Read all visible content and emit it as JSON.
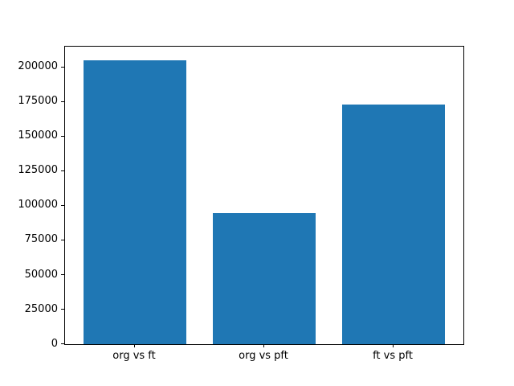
{
  "chart_data": {
    "type": "bar",
    "categories": [
      "org vs ft",
      "org vs pft",
      "ft vs pft"
    ],
    "values": [
      205000,
      95000,
      173000
    ],
    "title": "",
    "xlabel": "",
    "ylabel": "",
    "ylim": [
      0,
      215000
    ],
    "yticks": [
      0,
      25000,
      50000,
      75000,
      100000,
      125000,
      150000,
      175000,
      200000
    ],
    "bar_color": "#1f77b4",
    "bar_width_fraction": 0.8,
    "grid": false,
    "legend": false
  }
}
